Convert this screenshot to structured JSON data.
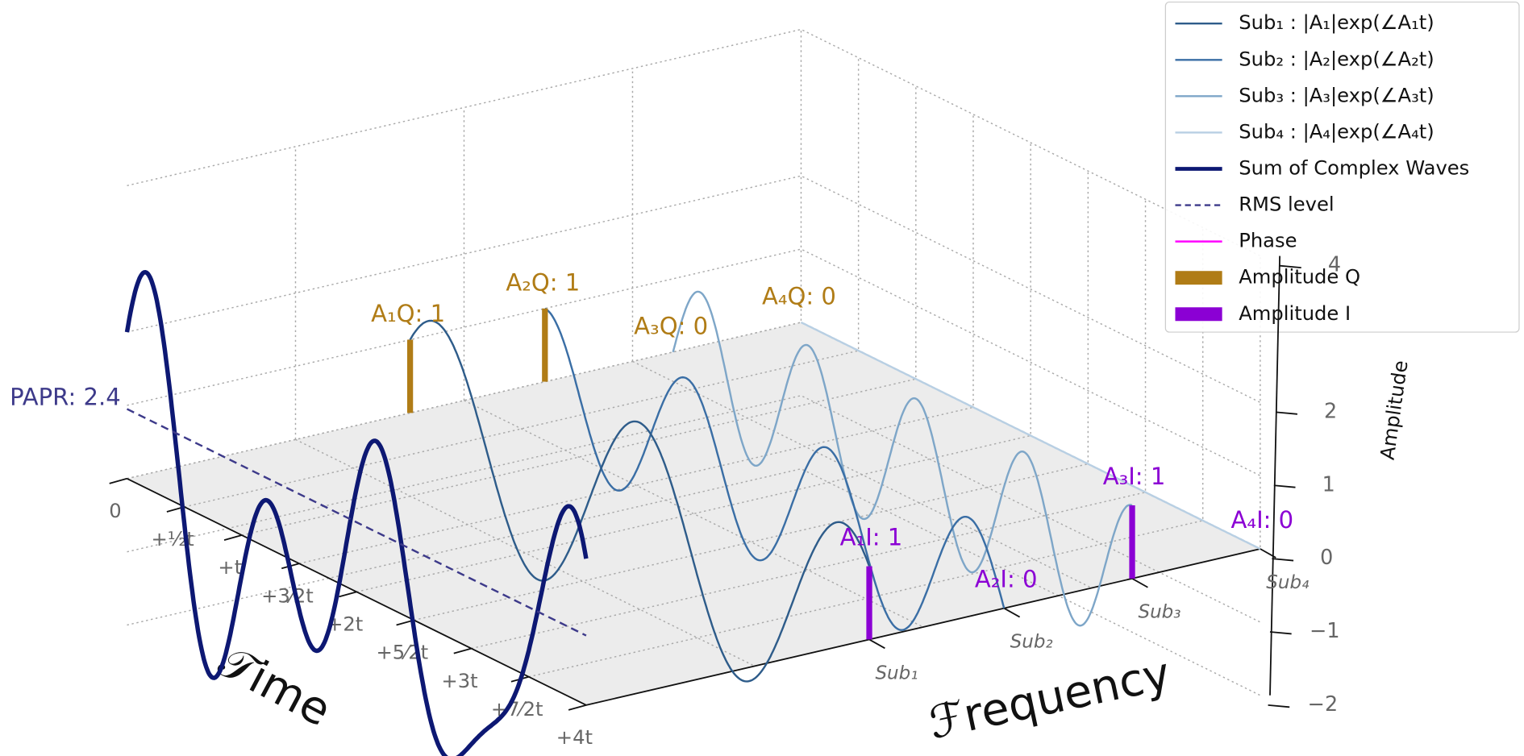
{
  "chart_data": {
    "type": "3d-waves",
    "x_label": "𝒯ime",
    "y_label": "ℱrequency",
    "z_label": "Amplitude",
    "xticks": [
      0,
      {
        "value": 0.5,
        "label": "+½t"
      },
      {
        "value": 1,
        "label": "+t"
      },
      {
        "value": 1.5,
        "label": "+3⁄2t"
      },
      {
        "value": 2,
        "label": "+2t"
      },
      {
        "value": 2.5,
        "label": "+5⁄2t"
      },
      {
        "value": 3,
        "label": "+3t"
      },
      {
        "value": 3.5,
        "label": "+7⁄2t"
      },
      {
        "value": 4,
        "label": "+4t"
      }
    ],
    "categories": [
      "Sub₁",
      "Sub₂",
      "Sub₃",
      "Sub₄"
    ],
    "zticks": [
      {
        "value": -2,
        "label": "−2"
      },
      {
        "value": -1,
        "label": "−1"
      },
      0,
      1,
      2,
      4
    ],
    "legend": [
      {
        "name": "Sub₁ : |A₁|exp(∠A₁t)",
        "color": "#2e5c8a"
      },
      {
        "name": "Sub₂ : |A₂|exp(∠A₂t)",
        "color": "#3a6ea5"
      },
      {
        "name": "Sub₃ : |A₃|exp(∠A₃t)",
        "color": "#7ea6c8"
      },
      {
        "name": "Sub₄ : |A₄|exp(∠A₄t)",
        "color": "#b8cfe3"
      },
      {
        "name": "Sum of Complex Waves",
        "color": "#0d1873"
      },
      {
        "name": "RMS level",
        "color": "#3d3a8a"
      },
      {
        "name": "Phase",
        "color": "#ff00ff"
      }
    ],
    "series": [
      {
        "name": "Amplitude Q",
        "color": "#b07c16",
        "values": [
          1,
          1,
          0,
          0
        ],
        "value_labels": [
          "A₁Q: 1",
          "A₂Q: 1",
          "A₃Q: 0",
          "A₄Q: 0"
        ]
      },
      {
        "name": "Amplitude I",
        "color": "#8b00d4",
        "values": [
          1,
          0,
          1,
          0
        ],
        "value_labels": [
          "A₁I: 1",
          "A₂I: 0",
          "A₃I: 1",
          "A₄I: 0"
        ]
      }
    ],
    "papr": {
      "value": 2.4,
      "label": "PAPR: 2.4"
    },
    "rms_level": 0.95
  }
}
